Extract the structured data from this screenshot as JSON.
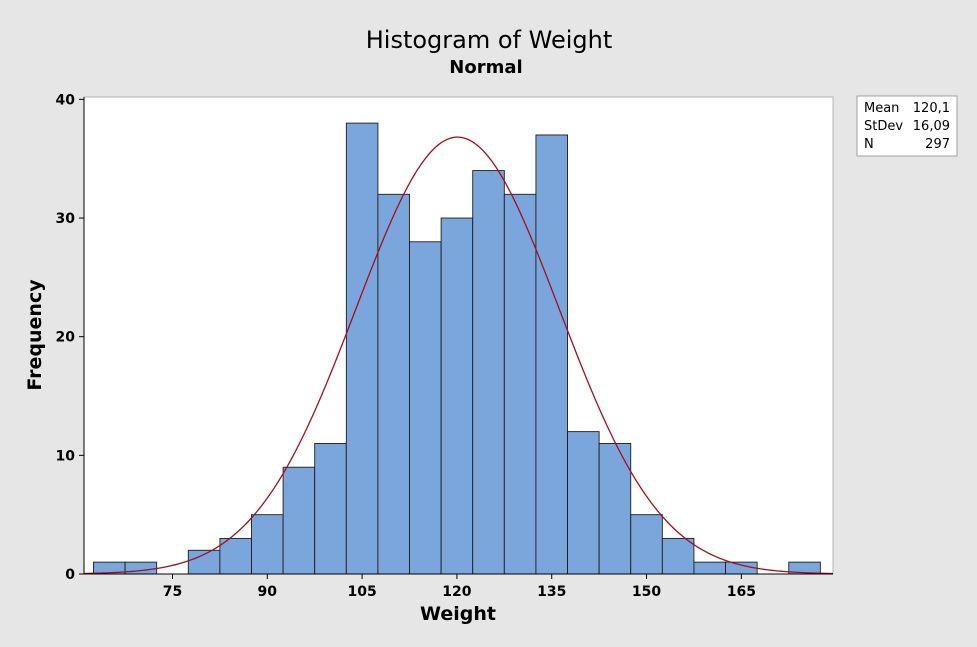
{
  "chart_data": {
    "type": "bar",
    "title": "Histogram of Weight",
    "subtitle": "Normal",
    "xlabel": "Weight",
    "ylabel": "Frequency",
    "bin_width": 5,
    "bins": [
      {
        "x": 65,
        "count": 1
      },
      {
        "x": 70,
        "count": 1
      },
      {
        "x": 75,
        "count": 0
      },
      {
        "x": 80,
        "count": 2
      },
      {
        "x": 85,
        "count": 3
      },
      {
        "x": 90,
        "count": 5
      },
      {
        "x": 95,
        "count": 9
      },
      {
        "x": 100,
        "count": 11
      },
      {
        "x": 105,
        "count": 38
      },
      {
        "x": 110,
        "count": 32
      },
      {
        "x": 115,
        "count": 28
      },
      {
        "x": 120,
        "count": 30
      },
      {
        "x": 125,
        "count": 34
      },
      {
        "x": 130,
        "count": 32
      },
      {
        "x": 135,
        "count": 37
      },
      {
        "x": 140,
        "count": 12
      },
      {
        "x": 145,
        "count": 11
      },
      {
        "x": 150,
        "count": 5
      },
      {
        "x": 155,
        "count": 3
      },
      {
        "x": 160,
        "count": 1
      },
      {
        "x": 165,
        "count": 1
      },
      {
        "x": 170,
        "count": 0
      },
      {
        "x": 175,
        "count": 1
      }
    ],
    "xticks": [
      75,
      90,
      105,
      120,
      135,
      150,
      165
    ],
    "yticks": [
      0,
      10,
      20,
      30,
      40
    ],
    "xlim": [
      61.0,
      179.5
    ],
    "ylim": [
      0,
      40.2
    ],
    "normal_fit": {
      "mean": 120.1,
      "stdev": 16.09,
      "n": 297
    },
    "legend": [
      {
        "label": "Mean",
        "value": "120,1"
      },
      {
        "label": "StDev",
        "value": "16,09"
      },
      {
        "label": "N",
        "value": "297"
      }
    ],
    "colors": {
      "bar_fill": "#7ba6db",
      "bar_stroke": "#1e1e1e",
      "curve": "#a01020",
      "plot_bg": "#ffffff",
      "page_bg": "#e6e6e6"
    }
  }
}
